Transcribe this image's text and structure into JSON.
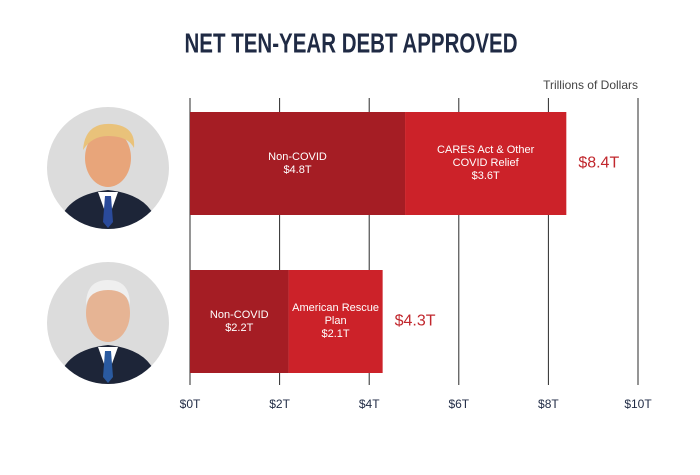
{
  "chart_data": {
    "type": "bar",
    "orientation": "horizontal",
    "stacked": true,
    "title": "NET TEN-YEAR DEBT APPROVED",
    "x_label": "Trillions of Dollars",
    "categories": [
      null,
      null
    ],
    "series": [
      {
        "name": "Non-COVID",
        "color": "#a51d24",
        "values": [
          4.8,
          2.2
        ],
        "value_labels": [
          "$4.8T",
          "$2.2T"
        ]
      },
      {
        "name": "CARES Act & Other COVID Relief",
        "color": "#cc2229",
        "values": [
          3.6,
          null
        ],
        "value_labels": [
          "$3.6T",
          null
        ]
      },
      {
        "name": "American Rescue Plan",
        "color": "#cc2229",
        "values": [
          null,
          2.1
        ],
        "value_labels": [
          null,
          "$2.1T"
        ]
      }
    ],
    "totals": {
      "values": [
        8.4,
        4.3
      ],
      "value_labels": [
        "$8.4T",
        "$4.3T"
      ],
      "color": "#c1272d"
    },
    "xlim": [
      0,
      10
    ],
    "xticks": [
      {
        "value": 0,
        "label": "$0T"
      },
      {
        "value": 2,
        "label": "$2T"
      },
      {
        "value": 4,
        "label": "$4T"
      },
      {
        "value": 6,
        "label": "$6T"
      },
      {
        "value": 8,
        "label": "$8T"
      },
      {
        "value": 10,
        "label": "$10T"
      }
    ],
    "grid": true
  }
}
